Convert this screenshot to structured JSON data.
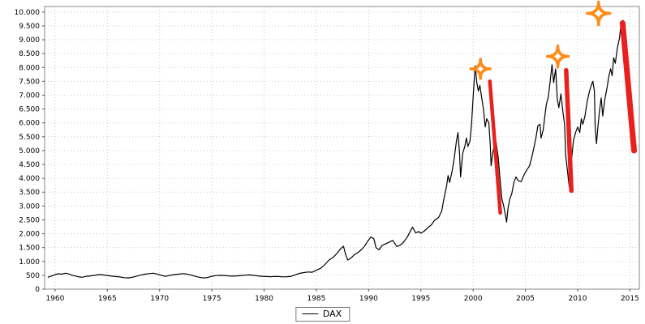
{
  "chart_data": {
    "type": "line",
    "title": "",
    "xlabel": "",
    "ylabel": "",
    "xlim": [
      1959.0,
      2015.9
    ],
    "ylim": [
      0,
      10200
    ],
    "grid": "dotted",
    "x_ticks": [
      1960,
      1965,
      1970,
      1975,
      1980,
      1985,
      1990,
      1995,
      2000,
      2005,
      2010,
      2015
    ],
    "x_tick_labels": [
      "1960",
      "1965",
      "1970",
      "1975",
      "1980",
      "1985",
      "1990",
      "1995",
      "2000",
      "2005",
      "2010",
      "2015"
    ],
    "y_ticks": [
      0,
      500,
      1000,
      1500,
      2000,
      2500,
      3000,
      3500,
      4000,
      4500,
      5000,
      5500,
      6000,
      6500,
      7000,
      7500,
      8000,
      8500,
      9000,
      9500,
      10000
    ],
    "y_tick_labels": [
      "0",
      "500",
      "1.000",
      "1.500",
      "2.000",
      "2.500",
      "3.000",
      "3.500",
      "4.000",
      "4.500",
      "5.000",
      "5.500",
      "6.000",
      "6.500",
      "7.000",
      "7.500",
      "8.000",
      "8.500",
      "9.000",
      "9.500",
      "10.000"
    ],
    "legend": {
      "position": "bottom-center",
      "entries": [
        {
          "label": "DAX",
          "color": "#000000",
          "marker": "line"
        }
      ]
    },
    "series": [
      {
        "name": "DAX",
        "color": "#000000",
        "points": [
          [
            1959.3,
            430
          ],
          [
            1959.7,
            480
          ],
          [
            1960.0,
            525
          ],
          [
            1960.3,
            555
          ],
          [
            1960.6,
            540
          ],
          [
            1961.0,
            575
          ],
          [
            1961.3,
            550
          ],
          [
            1961.6,
            505
          ],
          [
            1962.0,
            470
          ],
          [
            1962.3,
            440
          ],
          [
            1962.6,
            430
          ],
          [
            1963.0,
            465
          ],
          [
            1963.4,
            480
          ],
          [
            1963.8,
            500
          ],
          [
            1964.2,
            525
          ],
          [
            1964.6,
            515
          ],
          [
            1965.0,
            495
          ],
          [
            1965.4,
            470
          ],
          [
            1965.8,
            455
          ],
          [
            1966.2,
            440
          ],
          [
            1966.6,
            415
          ],
          [
            1967.0,
            405
          ],
          [
            1967.4,
            430
          ],
          [
            1967.8,
            470
          ],
          [
            1968.2,
            510
          ],
          [
            1968.6,
            540
          ],
          [
            1969.0,
            560
          ],
          [
            1969.4,
            575
          ],
          [
            1969.8,
            545
          ],
          [
            1970.2,
            495
          ],
          [
            1970.6,
            465
          ],
          [
            1971.0,
            500
          ],
          [
            1971.4,
            525
          ],
          [
            1971.8,
            540
          ],
          [
            1972.2,
            560
          ],
          [
            1972.6,
            545
          ],
          [
            1973.0,
            510
          ],
          [
            1973.4,
            465
          ],
          [
            1973.8,
            430
          ],
          [
            1974.2,
            405
          ],
          [
            1974.6,
            420
          ],
          [
            1975.0,
            465
          ],
          [
            1975.4,
            490
          ],
          [
            1975.8,
            500
          ],
          [
            1976.2,
            495
          ],
          [
            1976.6,
            480
          ],
          [
            1977.0,
            470
          ],
          [
            1977.4,
            480
          ],
          [
            1977.8,
            495
          ],
          [
            1978.2,
            505
          ],
          [
            1978.6,
            515
          ],
          [
            1979.0,
            500
          ],
          [
            1979.4,
            480
          ],
          [
            1979.8,
            465
          ],
          [
            1980.2,
            455
          ],
          [
            1980.6,
            450
          ],
          [
            1981.0,
            460
          ],
          [
            1981.4,
            455
          ],
          [
            1981.8,
            445
          ],
          [
            1982.2,
            450
          ],
          [
            1982.6,
            465
          ],
          [
            1983.0,
            520
          ],
          [
            1983.4,
            570
          ],
          [
            1983.8,
            600
          ],
          [
            1984.2,
            620
          ],
          [
            1984.6,
            610
          ],
          [
            1985.0,
            680
          ],
          [
            1985.4,
            750
          ],
          [
            1985.8,
            880
          ],
          [
            1986.2,
            1050
          ],
          [
            1986.6,
            1150
          ],
          [
            1987.0,
            1300
          ],
          [
            1987.3,
            1450
          ],
          [
            1987.6,
            1550
          ],
          [
            1987.8,
            1250
          ],
          [
            1988.0,
            1050
          ],
          [
            1988.3,
            1120
          ],
          [
            1988.6,
            1230
          ],
          [
            1989.0,
            1330
          ],
          [
            1989.3,
            1420
          ],
          [
            1989.6,
            1550
          ],
          [
            1989.9,
            1720
          ],
          [
            1990.2,
            1880
          ],
          [
            1990.5,
            1820
          ],
          [
            1990.7,
            1500
          ],
          [
            1991.0,
            1420
          ],
          [
            1991.3,
            1580
          ],
          [
            1991.6,
            1630
          ],
          [
            1992.0,
            1700
          ],
          [
            1992.3,
            1760
          ],
          [
            1992.7,
            1540
          ],
          [
            1993.0,
            1580
          ],
          [
            1993.3,
            1680
          ],
          [
            1993.7,
            1880
          ],
          [
            1994.0,
            2100
          ],
          [
            1994.2,
            2240
          ],
          [
            1994.5,
            2030
          ],
          [
            1994.8,
            2080
          ],
          [
            1995.0,
            2020
          ],
          [
            1995.3,
            2090
          ],
          [
            1995.7,
            2230
          ],
          [
            1996.0,
            2320
          ],
          [
            1996.3,
            2480
          ],
          [
            1996.7,
            2590
          ],
          [
            1997.0,
            2830
          ],
          [
            1997.2,
            3250
          ],
          [
            1997.45,
            3700
          ],
          [
            1997.6,
            4100
          ],
          [
            1997.75,
            3850
          ],
          [
            1998.0,
            4280
          ],
          [
            1998.2,
            4750
          ],
          [
            1998.4,
            5350
          ],
          [
            1998.55,
            5650
          ],
          [
            1998.7,
            4900
          ],
          [
            1998.8,
            4050
          ],
          [
            1999.0,
            4900
          ],
          [
            1999.2,
            5150
          ],
          [
            1999.35,
            5450
          ],
          [
            1999.5,
            5150
          ],
          [
            1999.7,
            5350
          ],
          [
            1999.85,
            5950
          ],
          [
            2000.0,
            6950
          ],
          [
            2000.2,
            8060
          ],
          [
            2000.35,
            7450
          ],
          [
            2000.5,
            7150
          ],
          [
            2000.65,
            7350
          ],
          [
            2000.8,
            6950
          ],
          [
            2001.0,
            6450
          ],
          [
            2001.15,
            5850
          ],
          [
            2001.3,
            6150
          ],
          [
            2001.5,
            6000
          ],
          [
            2001.65,
            5150
          ],
          [
            2001.72,
            4450
          ],
          [
            2001.85,
            4850
          ],
          [
            2002.0,
            5150
          ],
          [
            2002.2,
            5300
          ],
          [
            2002.4,
            4750
          ],
          [
            2002.6,
            3850
          ],
          [
            2002.75,
            3250
          ],
          [
            2002.9,
            3050
          ],
          [
            2003.1,
            2650
          ],
          [
            2003.2,
            2420
          ],
          [
            2003.35,
            2950
          ],
          [
            2003.5,
            3250
          ],
          [
            2003.7,
            3450
          ],
          [
            2003.9,
            3850
          ],
          [
            2004.1,
            4050
          ],
          [
            2004.3,
            3920
          ],
          [
            2004.6,
            3880
          ],
          [
            2004.9,
            4150
          ],
          [
            2005.1,
            4280
          ],
          [
            2005.4,
            4450
          ],
          [
            2005.7,
            4900
          ],
          [
            2006.0,
            5450
          ],
          [
            2006.2,
            5900
          ],
          [
            2006.4,
            5950
          ],
          [
            2006.5,
            5450
          ],
          [
            2006.7,
            5750
          ],
          [
            2007.0,
            6650
          ],
          [
            2007.2,
            6950
          ],
          [
            2007.35,
            7450
          ],
          [
            2007.55,
            8100
          ],
          [
            2007.7,
            7450
          ],
          [
            2007.9,
            7950
          ],
          [
            2008.05,
            6850
          ],
          [
            2008.2,
            6550
          ],
          [
            2008.4,
            7050
          ],
          [
            2008.6,
            6350
          ],
          [
            2008.75,
            5950
          ],
          [
            2008.85,
            4850
          ],
          [
            2009.0,
            4350
          ],
          [
            2009.2,
            3680
          ],
          [
            2009.4,
            4650
          ],
          [
            2009.6,
            5350
          ],
          [
            2009.8,
            5650
          ],
          [
            2010.0,
            5850
          ],
          [
            2010.2,
            5650
          ],
          [
            2010.35,
            6150
          ],
          [
            2010.5,
            5950
          ],
          [
            2010.7,
            6250
          ],
          [
            2010.9,
            6750
          ],
          [
            2011.1,
            7100
          ],
          [
            2011.3,
            7350
          ],
          [
            2011.45,
            7500
          ],
          [
            2011.6,
            7150
          ],
          [
            2011.68,
            5850
          ],
          [
            2011.8,
            5250
          ],
          [
            2011.95,
            5900
          ],
          [
            2012.1,
            6450
          ],
          [
            2012.25,
            6900
          ],
          [
            2012.4,
            6250
          ],
          [
            2012.6,
            6850
          ],
          [
            2012.8,
            7250
          ],
          [
            2013.0,
            7700
          ],
          [
            2013.15,
            7950
          ],
          [
            2013.3,
            7700
          ],
          [
            2013.45,
            8350
          ],
          [
            2013.6,
            8150
          ],
          [
            2013.8,
            8700
          ],
          [
            2014.0,
            9050
          ],
          [
            2014.1,
            9400
          ],
          [
            2014.2,
            9150
          ],
          [
            2014.35,
            9700
          ],
          [
            2014.45,
            9350
          ]
        ]
      }
    ],
    "annotations": {
      "star_color": "#ff8c1a",
      "crash_color": "#e8201e",
      "stars": [
        {
          "x": 2000.7,
          "y": 7950,
          "r": 12
        },
        {
          "x": 2008.1,
          "y": 8400,
          "r": 13
        },
        {
          "x": 2012.0,
          "y": 9950,
          "r": 14
        }
      ],
      "crash_lines": [
        {
          "x1": 2001.6,
          "y1": 7500,
          "x2": 2002.6,
          "y2": 2750,
          "width": 4.5
        },
        {
          "x1": 2008.9,
          "y1": 7900,
          "x2": 2009.4,
          "y2": 3550,
          "width": 5.5
        },
        {
          "x1": 2014.3,
          "y1": 9600,
          "x2": 2015.4,
          "y2": 5000,
          "width": 7
        }
      ]
    }
  }
}
